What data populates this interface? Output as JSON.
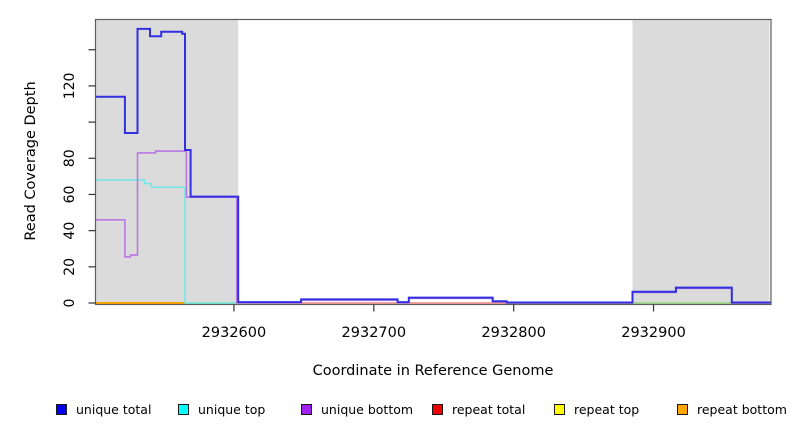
{
  "figure": {
    "x_axis_title": "Coordinate in Reference Genome",
    "y_axis_title": "Read Coverage Depth"
  },
  "chart_data": {
    "type": "line",
    "title": "",
    "xlabel": "Coordinate in Reference Genome",
    "ylabel": "Read Coverage Depth",
    "xlim": [
      2932501,
      2932984
    ],
    "ylim": [
      0,
      157
    ],
    "grid": false,
    "x_ticks": [
      2932600,
      2932700,
      2932800,
      2932900
    ],
    "y_ticks": [
      0,
      20,
      40,
      60,
      80,
      100,
      120,
      140
    ],
    "y_tick_labels": [
      "0",
      "20",
      "40",
      "60",
      "80",
      "",
      "120",
      ""
    ],
    "shaded_regions": [
      {
        "name": "left-repeat-region",
        "x0": 2932501,
        "x1": 2932603,
        "color": "#dbdbdb"
      },
      {
        "name": "right-repeat-region",
        "x0": 2932885,
        "x1": 2932983,
        "color": "#dbdbdb"
      }
    ],
    "series": [
      {
        "name": "repeat total",
        "color": "#f08080",
        "width": 1.6,
        "segments": [
          [
            [
              2932603,
              0
            ],
            [
              2932984,
              null
            ]
          ]
        ]
      },
      {
        "name": "repeat top",
        "color": "#9cdc8c",
        "width": 1.8,
        "segments": [
          [
            [
              2932565,
              0
            ],
            [
              2932603,
              null
            ]
          ],
          [
            [
              2932885,
              0
            ],
            [
              2932956,
              null
            ]
          ]
        ]
      },
      {
        "name": "repeat bottom",
        "color": "#ffa500",
        "width": 2,
        "segments": [
          [
            [
              2932501,
              0
            ],
            [
              2932565,
              null
            ]
          ]
        ]
      },
      {
        "name": "unique top",
        "color": "#70e8e8",
        "width": 1.5,
        "segments": [
          [
            [
              2932501,
              68
            ],
            [
              2932536,
              66
            ],
            [
              2932541,
              64
            ],
            [
              2932565,
              0
            ],
            [
              2932603,
              null
            ]
          ]
        ]
      },
      {
        "name": "unique bottom",
        "color": "#b878e0",
        "width": 1.6,
        "segments": [
          [
            [
              2932501,
              46
            ],
            [
              2932522,
              25.5
            ],
            [
              2932526,
              26.5
            ],
            [
              2932531,
              83
            ],
            [
              2932544,
              84
            ],
            [
              2932566,
              58.5
            ],
            [
              2932602,
              0.1
            ],
            [
              2932648,
              1.6
            ],
            [
              2932717,
              0.1
            ],
            [
              2932725,
              2.6
            ],
            [
              2932785,
              0.7
            ],
            [
              2932795,
              0
            ],
            [
              2932885,
              5.8
            ],
            [
              2932916,
              8.1
            ],
            [
              2932956,
              0
            ],
            [
              2932984,
              null
            ]
          ]
        ]
      },
      {
        "name": "unique total",
        "color": "#3030e0",
        "width": 2,
        "segments": [
          [
            [
              2932501,
              114
            ],
            [
              2932522,
              94
            ],
            [
              2932531,
              151.5
            ],
            [
              2932540,
              147.5
            ],
            [
              2932548,
              150
            ],
            [
              2932563,
              148.8
            ],
            [
              2932565,
              84.6
            ],
            [
              2932569,
              58.8
            ],
            [
              2932603,
              0.5
            ],
            [
              2932648,
              2
            ],
            [
              2932717,
              0.5
            ],
            [
              2932725,
              3
            ],
            [
              2932785,
              1
            ],
            [
              2932795,
              0.3
            ],
            [
              2932885,
              6.2
            ],
            [
              2932916,
              8.5
            ],
            [
              2932956,
              0.3
            ],
            [
              2932984,
              null
            ]
          ]
        ]
      }
    ],
    "legend": {
      "position": "bottom",
      "entries": [
        {
          "label": "unique total",
          "color": "#0000ee"
        },
        {
          "label": "unique top",
          "color": "#00ffff"
        },
        {
          "label": "unique bottom",
          "color": "#a020f0"
        },
        {
          "label": "repeat total",
          "color": "#ee0000"
        },
        {
          "label": "repeat top",
          "color": "#ffff00"
        },
        {
          "label": "repeat bottom",
          "color": "#ffa500"
        }
      ]
    }
  }
}
